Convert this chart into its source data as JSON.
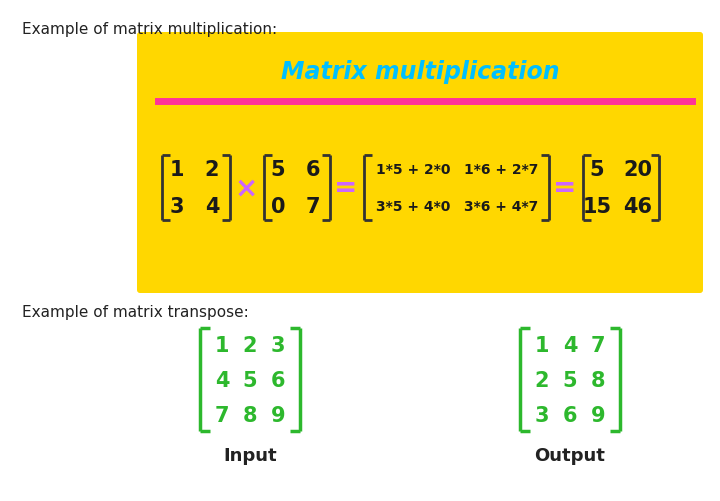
{
  "bg_color": "#ffffff",
  "yellow_box_color": "#FFD700",
  "title_text": "Matrix multiplication",
  "title_color": "#00BFFF",
  "title_fontsize": 17,
  "pink_color": "#FF3399",
  "section1_label": "Example of matrix multiplication:",
  "section2_label": "Example of matrix transpose:",
  "label_fontsize": 11,
  "label_color": "#222222",
  "matrix_color": "#1a1a1a",
  "matrix_fontsize": 15,
  "bracket_color_dark": "#333333",
  "bracket_color_green": "#2db82d",
  "cross_color": "#CC66FF",
  "equals_color": "#CC66FF",
  "input_label": "Input",
  "output_label": "Output",
  "input_output_fontsize": 13
}
